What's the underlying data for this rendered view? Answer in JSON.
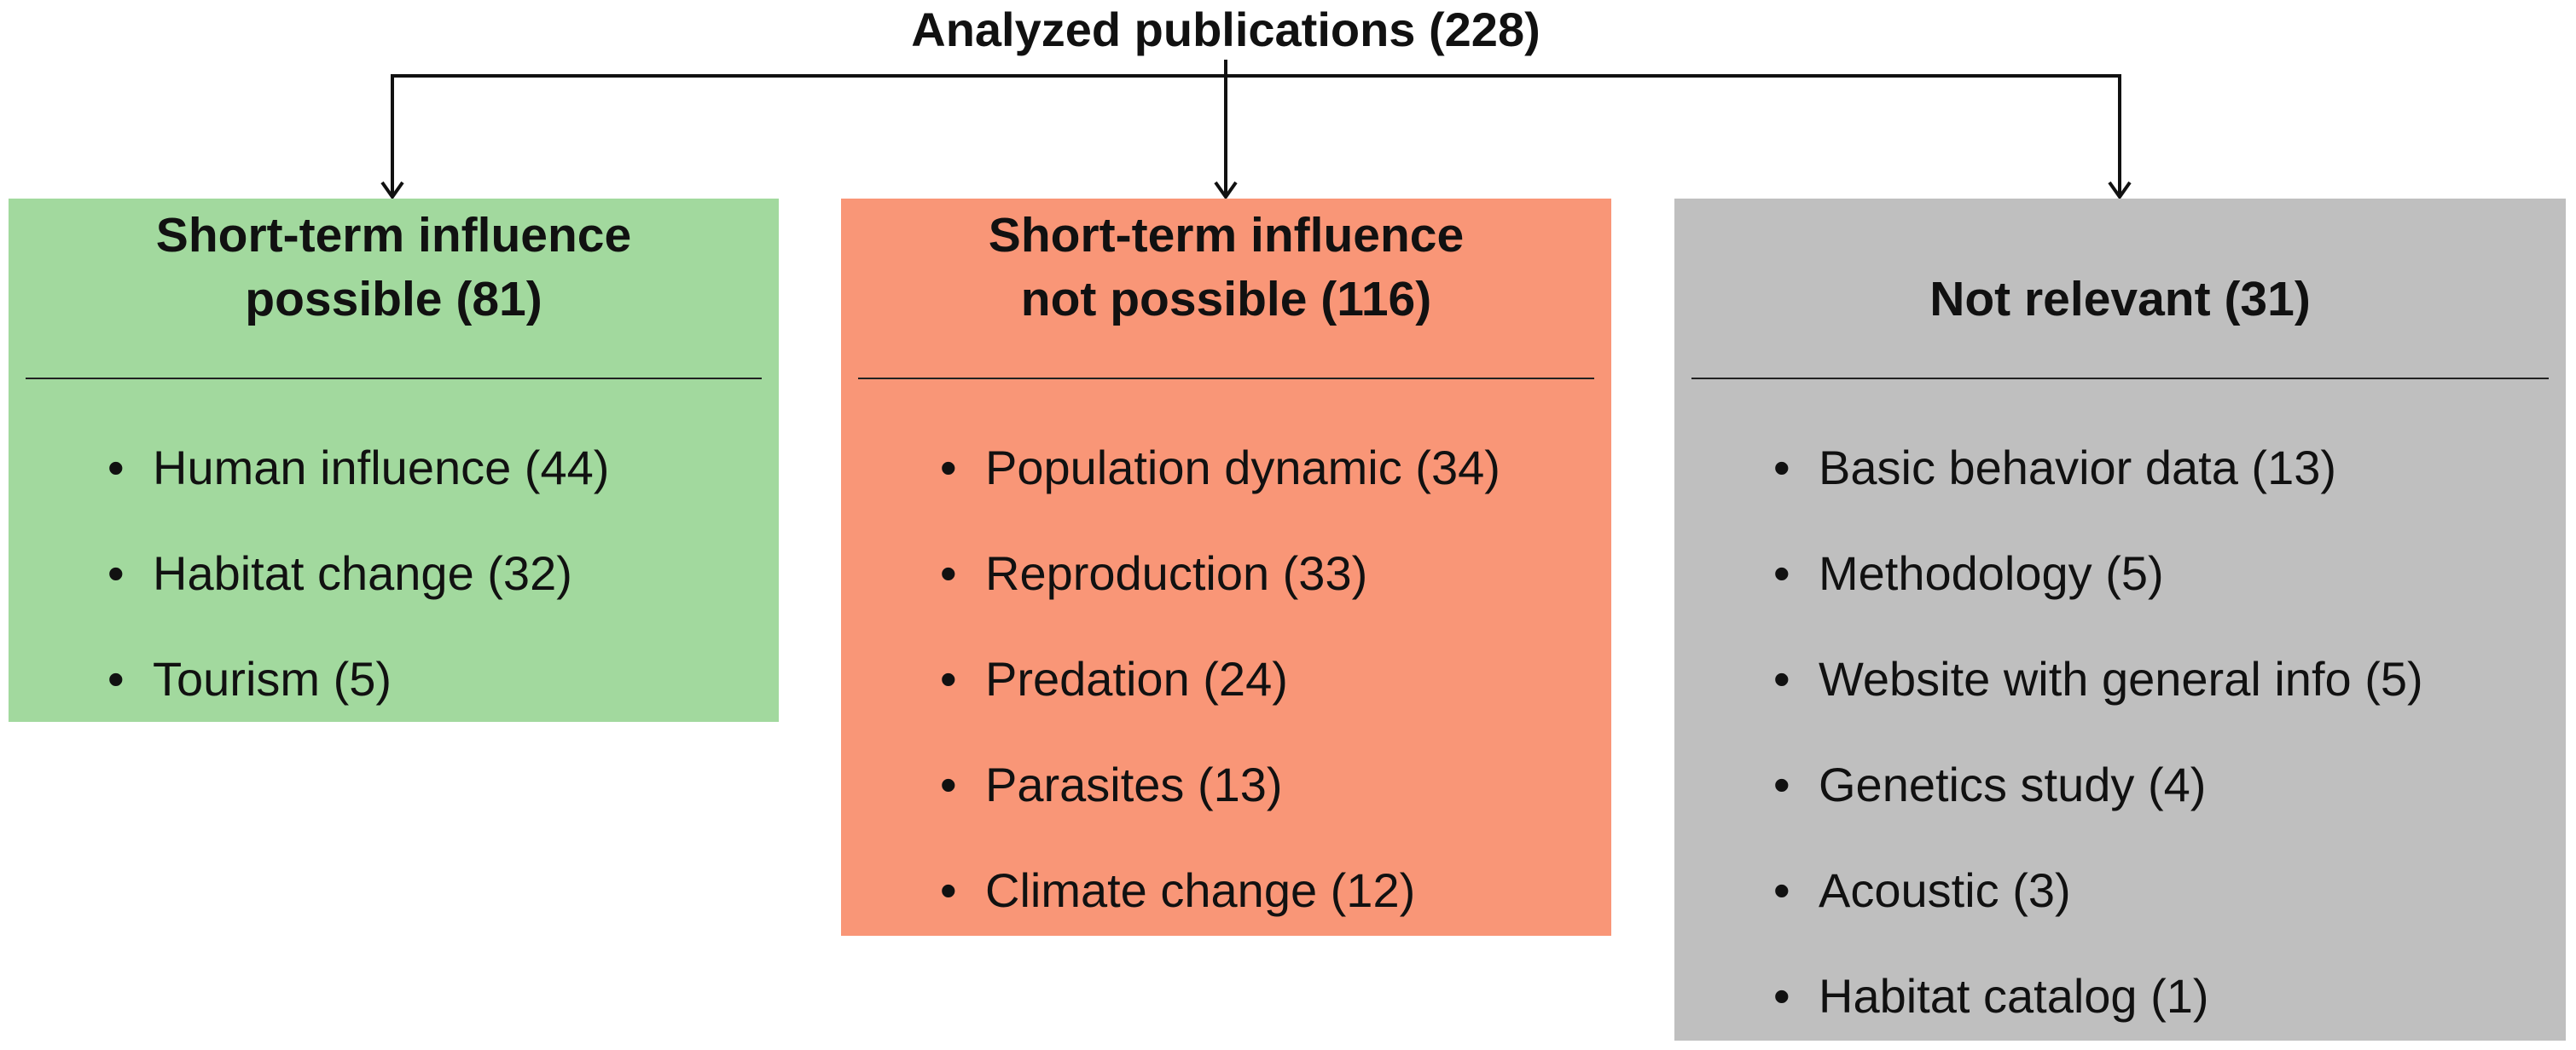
{
  "title": "Analyzed publications (228)",
  "boxes": [
    {
      "heading": "Short-term influence possible (81)",
      "items": [
        "Human influence (44)",
        "Habitat change (32)",
        "Tourism (5)"
      ]
    },
    {
      "heading": "Short-term influence not possible (116)",
      "items": [
        "Population dynamic (34)",
        "Reproduction (33)",
        "Predation (24)",
        "Parasites (13)",
        "Climate change (12)"
      ]
    },
    {
      "heading": "Not relevant (31)",
      "items": [
        "Basic behavior data (13)",
        "Methodology (5)",
        "Website with general info (5)",
        "Genetics study (4)",
        "Acoustic (3)",
        "Habitat catalog (1)"
      ]
    }
  ]
}
